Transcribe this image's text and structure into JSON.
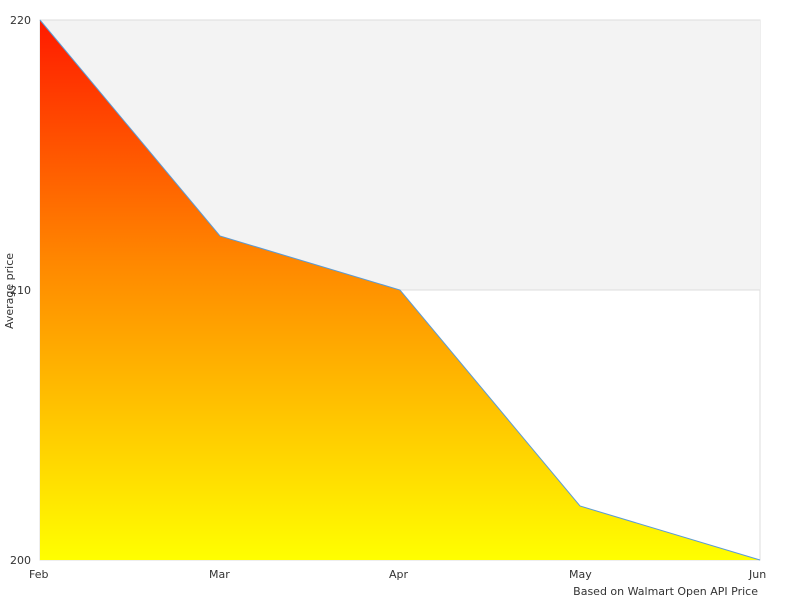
{
  "chart_data": {
    "type": "area",
    "title": "",
    "xlabel": "",
    "ylabel": "Average price",
    "categories": [
      "Feb",
      "Mar",
      "Apr",
      "May",
      "Jun"
    ],
    "series": [
      {
        "values": [
          220,
          212,
          210,
          202,
          200
        ]
      }
    ],
    "ylim": [
      200,
      220
    ],
    "yticks": [
      200,
      210,
      220
    ],
    "credit": "Based on Walmart Open API Price",
    "grid": true,
    "colors": {
      "band": "#f3f3f3",
      "line": "#5b9bd5",
      "gradient_top": "#ff1a00",
      "gradient_mid": "#ff8800",
      "gradient_bottom": "#ffff00",
      "axis": "#dddddd"
    }
  }
}
